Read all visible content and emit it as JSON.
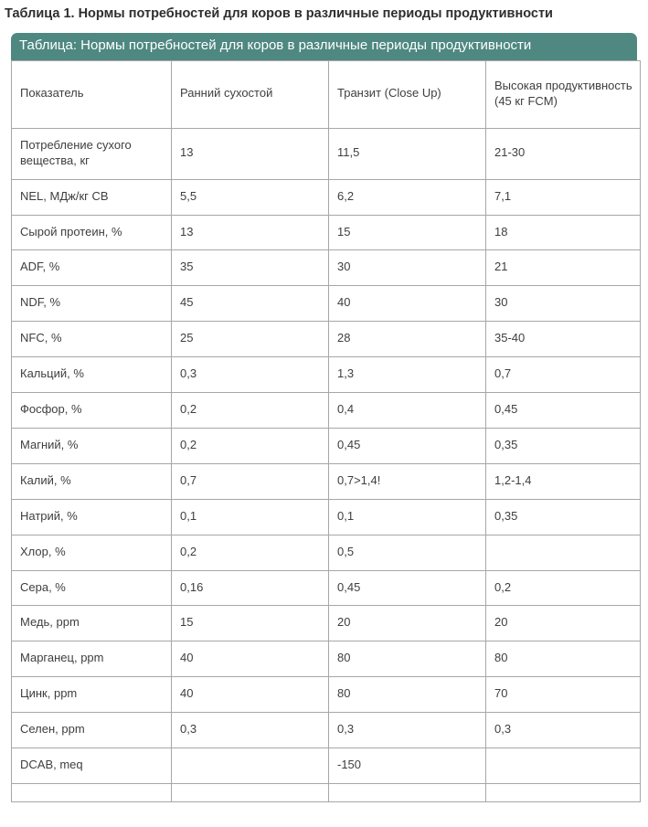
{
  "page": {
    "title": "Таблица 1. Нормы потребностей для коров в различные периоды продуктивности"
  },
  "banner": {
    "caption": "Таблица: Нормы потребностей для коров в различные периоды продуктивности"
  },
  "table": {
    "headers": [
      "Показатель",
      "Ранний сухостой",
      "Транзит (Close Up)",
      "Высокая продуктивность  (45 кг FCM)"
    ],
    "rows": [
      [
        "Потребление сухого вещества, кг",
        "13",
        "11,5",
        "21-30"
      ],
      [
        "NEL, МДж/кг СВ",
        "5,5",
        "6,2",
        "7,1"
      ],
      [
        "Сырой протеин, %",
        "13",
        "15",
        "18"
      ],
      [
        "ADF, %",
        "35",
        "30",
        "21"
      ],
      [
        "NDF, %",
        "45",
        "40",
        "30"
      ],
      [
        "NFC, %",
        "25",
        "28",
        "35-40"
      ],
      [
        "Кальций, %",
        "0,3",
        "1,3",
        "0,7"
      ],
      [
        "Фосфор, %",
        "0,2",
        "0,4",
        "0,45"
      ],
      [
        "Магний, %",
        "0,2",
        "0,45",
        "0,35"
      ],
      [
        "Калий, %",
        "0,7",
        "0,7>1,4!",
        "1,2-1,4"
      ],
      [
        "Натрий, %",
        "0,1",
        "0,1",
        "0,35"
      ],
      [
        "Хлор, %",
        "0,2",
        "0,5",
        ""
      ],
      [
        "Сера, %",
        "0,16",
        "0,45",
        "0,2"
      ],
      [
        "Медь, ppm",
        "15",
        "20",
        "20"
      ],
      [
        "Марганец, ppm",
        "40",
        "80",
        "80"
      ],
      [
        "Цинк, ppm",
        "40",
        "80",
        "70"
      ],
      [
        "Селен, ppm",
        "0,3",
        "0,3",
        "0,3"
      ],
      [
        "DCAB, meq",
        "",
        "-150",
        ""
      ],
      [
        "",
        "",
        "",
        ""
      ]
    ]
  },
  "colors": {
    "banner_background": "#4e8881",
    "banner_text": "#ffffff",
    "table_border": "#a7a7a7",
    "body_text": "#3e3e3e",
    "title_text": "#2e2e2e"
  }
}
